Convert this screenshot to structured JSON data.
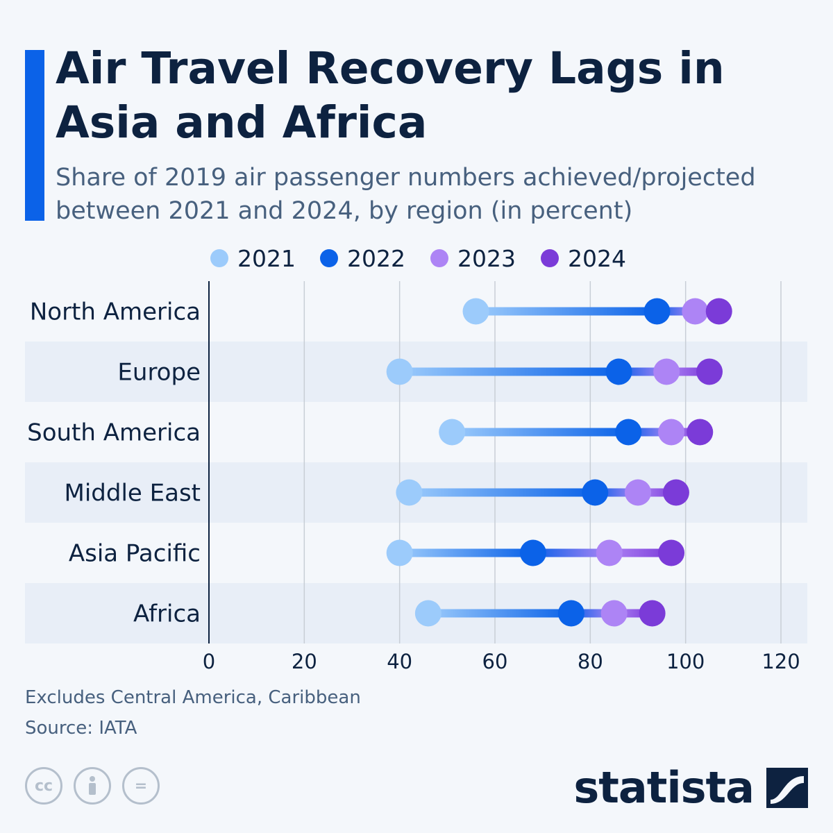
{
  "header": {
    "title": "Air Travel Recovery Lags in Asia and Africa",
    "subtitle": "Share of 2019 air passenger numbers achieved/projected between 2021 and 2024, by region (in percent)"
  },
  "footer": {
    "note": "Excludes Central America, Caribbean",
    "source": "Source: IATA",
    "brand": "statista",
    "license_icons": [
      "cc-icon",
      "attribution-icon",
      "no-derivatives-icon"
    ]
  },
  "colors": {
    "accent": "#0b62e8",
    "y2021": "#9ccbfb",
    "y2022": "#0b62e8",
    "y2023": "#ad84f5",
    "y2024": "#7b3bd8",
    "band": "#e8eef7",
    "grid": "#c8ced6",
    "axis": "#0d2240"
  },
  "chart_data": {
    "type": "dumbbell",
    "title": "Air Travel Recovery Lags in Asia and Africa",
    "xlabel": "",
    "ylabel": "",
    "xlim": [
      0,
      120
    ],
    "xticks": [
      0,
      20,
      40,
      60,
      80,
      100,
      120
    ],
    "grid": true,
    "legend_position": "top-center",
    "categories": [
      "North America",
      "Europe",
      "South America",
      "Middle East",
      "Asia Pacific",
      "Africa"
    ],
    "series": [
      {
        "name": "2021",
        "values": [
          56,
          40,
          51,
          42,
          40,
          46
        ]
      },
      {
        "name": "2022",
        "values": [
          94,
          86,
          88,
          81,
          68,
          76
        ]
      },
      {
        "name": "2023",
        "values": [
          102,
          96,
          97,
          90,
          84,
          85
        ]
      },
      {
        "name": "2024",
        "values": [
          107,
          105,
          103,
          98,
          97,
          93
        ]
      }
    ]
  }
}
